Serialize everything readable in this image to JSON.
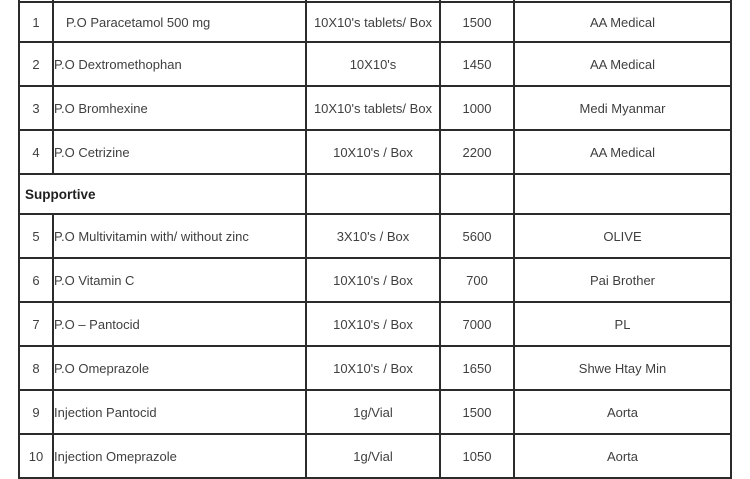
{
  "table": {
    "section_label": "Supportive",
    "rows": [
      {
        "type": "item",
        "no": "1",
        "name": "P.O Paracetamol 500 mg",
        "packaging": "10X10's tablets/ Box",
        "amount": "1500",
        "supplier": "AA Medical",
        "indent": true,
        "bold_divider": true
      },
      {
        "type": "item",
        "no": "2",
        "name": "P.O Dextromethophan",
        "packaging": "10X10's",
        "amount": "1450",
        "supplier": "AA Medical"
      },
      {
        "type": "item",
        "no": "3",
        "name": "P.O Bromhexine",
        "packaging": "10X10's tablets/ Box",
        "amount": "1000",
        "supplier": "Medi Myanmar",
        "bold_divider": true
      },
      {
        "type": "item",
        "no": "4",
        "name": "P.O Cetrizine",
        "packaging": "10X10's / Box",
        "amount": "2200",
        "supplier": "AA Medical"
      },
      {
        "type": "section",
        "label": "Supportive"
      },
      {
        "type": "item",
        "no": "5",
        "name": "P.O Multivitamin with/ without zinc",
        "packaging": "3X10's / Box",
        "amount": "5600",
        "supplier": "OLIVE"
      },
      {
        "type": "item",
        "no": "6",
        "name": "P.O Vitamin C",
        "packaging": "10X10's / Box",
        "amount": "700",
        "supplier": "Pai Brother"
      },
      {
        "type": "item",
        "no": "7",
        "name": "P.O – Pantocid",
        "packaging": "10X10's / Box",
        "amount": "7000",
        "supplier": "PL"
      },
      {
        "type": "item",
        "no": "8",
        "name": "P.O Omeprazole",
        "packaging": "10X10's / Box",
        "amount": "1650",
        "supplier": "Shwe Htay Min"
      },
      {
        "type": "item",
        "no": "9",
        "name": "Injection Pantocid",
        "packaging": "1g/Vial",
        "amount": "1500",
        "supplier": "Aorta"
      },
      {
        "type": "item",
        "no": "10",
        "name": "Injection Omeprazole",
        "packaging": "1g/Vial",
        "amount": "1050",
        "supplier": "Aorta",
        "clipped": true
      }
    ]
  }
}
